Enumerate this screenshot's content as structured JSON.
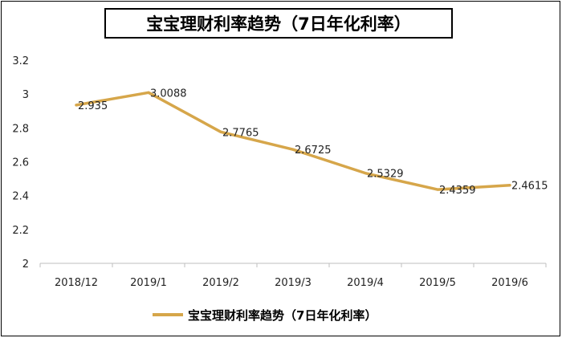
{
  "colors": {
    "series": "#D6A64A",
    "frame": "#000000",
    "axis": "#bfbfbf"
  },
  "chart_data": {
    "type": "line",
    "title": "宝宝理财利率趋势（7日年化利率）",
    "categories": [
      "2018/12",
      "2019/1",
      "2019/2",
      "2019/3",
      "2019/4",
      "2019/5",
      "2019/6"
    ],
    "series": [
      {
        "name": "宝宝理财利率趋势（7日年化利率）",
        "values": [
          2.935,
          3.0088,
          2.7765,
          2.6725,
          2.5329,
          2.4359,
          2.4615
        ],
        "labels": [
          "2.935",
          "3.0088",
          "2.7765",
          "2.6725",
          "2.5329",
          "2.4359",
          "2.4615"
        ]
      }
    ],
    "yticks": [
      "2",
      "2.2",
      "2.4",
      "2.6",
      "2.8",
      "3",
      "3.2"
    ],
    "ylim": [
      2,
      3.2
    ],
    "xlabel": "",
    "ylabel": "",
    "legend": "bottom"
  }
}
